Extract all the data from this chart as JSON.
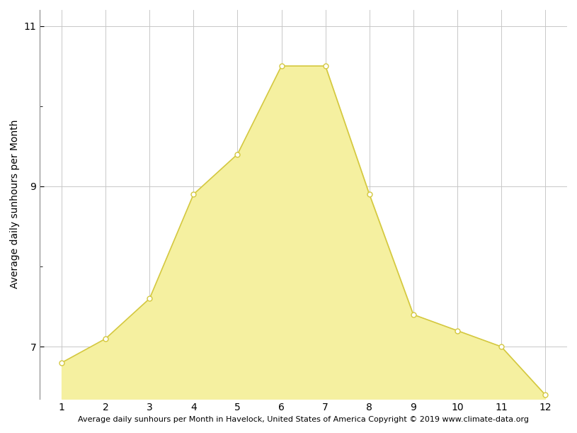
{
  "months": [
    1,
    2,
    3,
    4,
    5,
    6,
    7,
    8,
    9,
    10,
    11,
    12
  ],
  "sunhours": [
    6.8,
    7.1,
    7.6,
    8.9,
    9.4,
    10.5,
    10.5,
    8.9,
    7.4,
    7.2,
    7.0,
    6.4
  ],
  "fill_color": "#F5F0A0",
  "line_color": "#D4C840",
  "marker_color": "#FFFFFF",
  "marker_edge_color": "#C8B830",
  "ylabel": "Average daily sunhours per Month",
  "xlabel": "Average daily sunhours per Month in Havelock, United States of America Copyright © 2019 www.climate-data.org",
  "ylim_bottom": 6.35,
  "ylim_top": 11.2,
  "yticks": [
    7,
    9,
    11
  ],
  "ytick_minor": [
    8,
    10
  ],
  "xticks": [
    1,
    2,
    3,
    4,
    5,
    6,
    7,
    8,
    9,
    10,
    11,
    12
  ],
  "grid_color": "#C8C8C8",
  "background_color": "#FFFFFF",
  "ylabel_fontsize": 10,
  "xlabel_fontsize": 8,
  "tick_fontsize": 10,
  "figwidth": 8.15,
  "figheight": 6.11,
  "dpi": 100
}
